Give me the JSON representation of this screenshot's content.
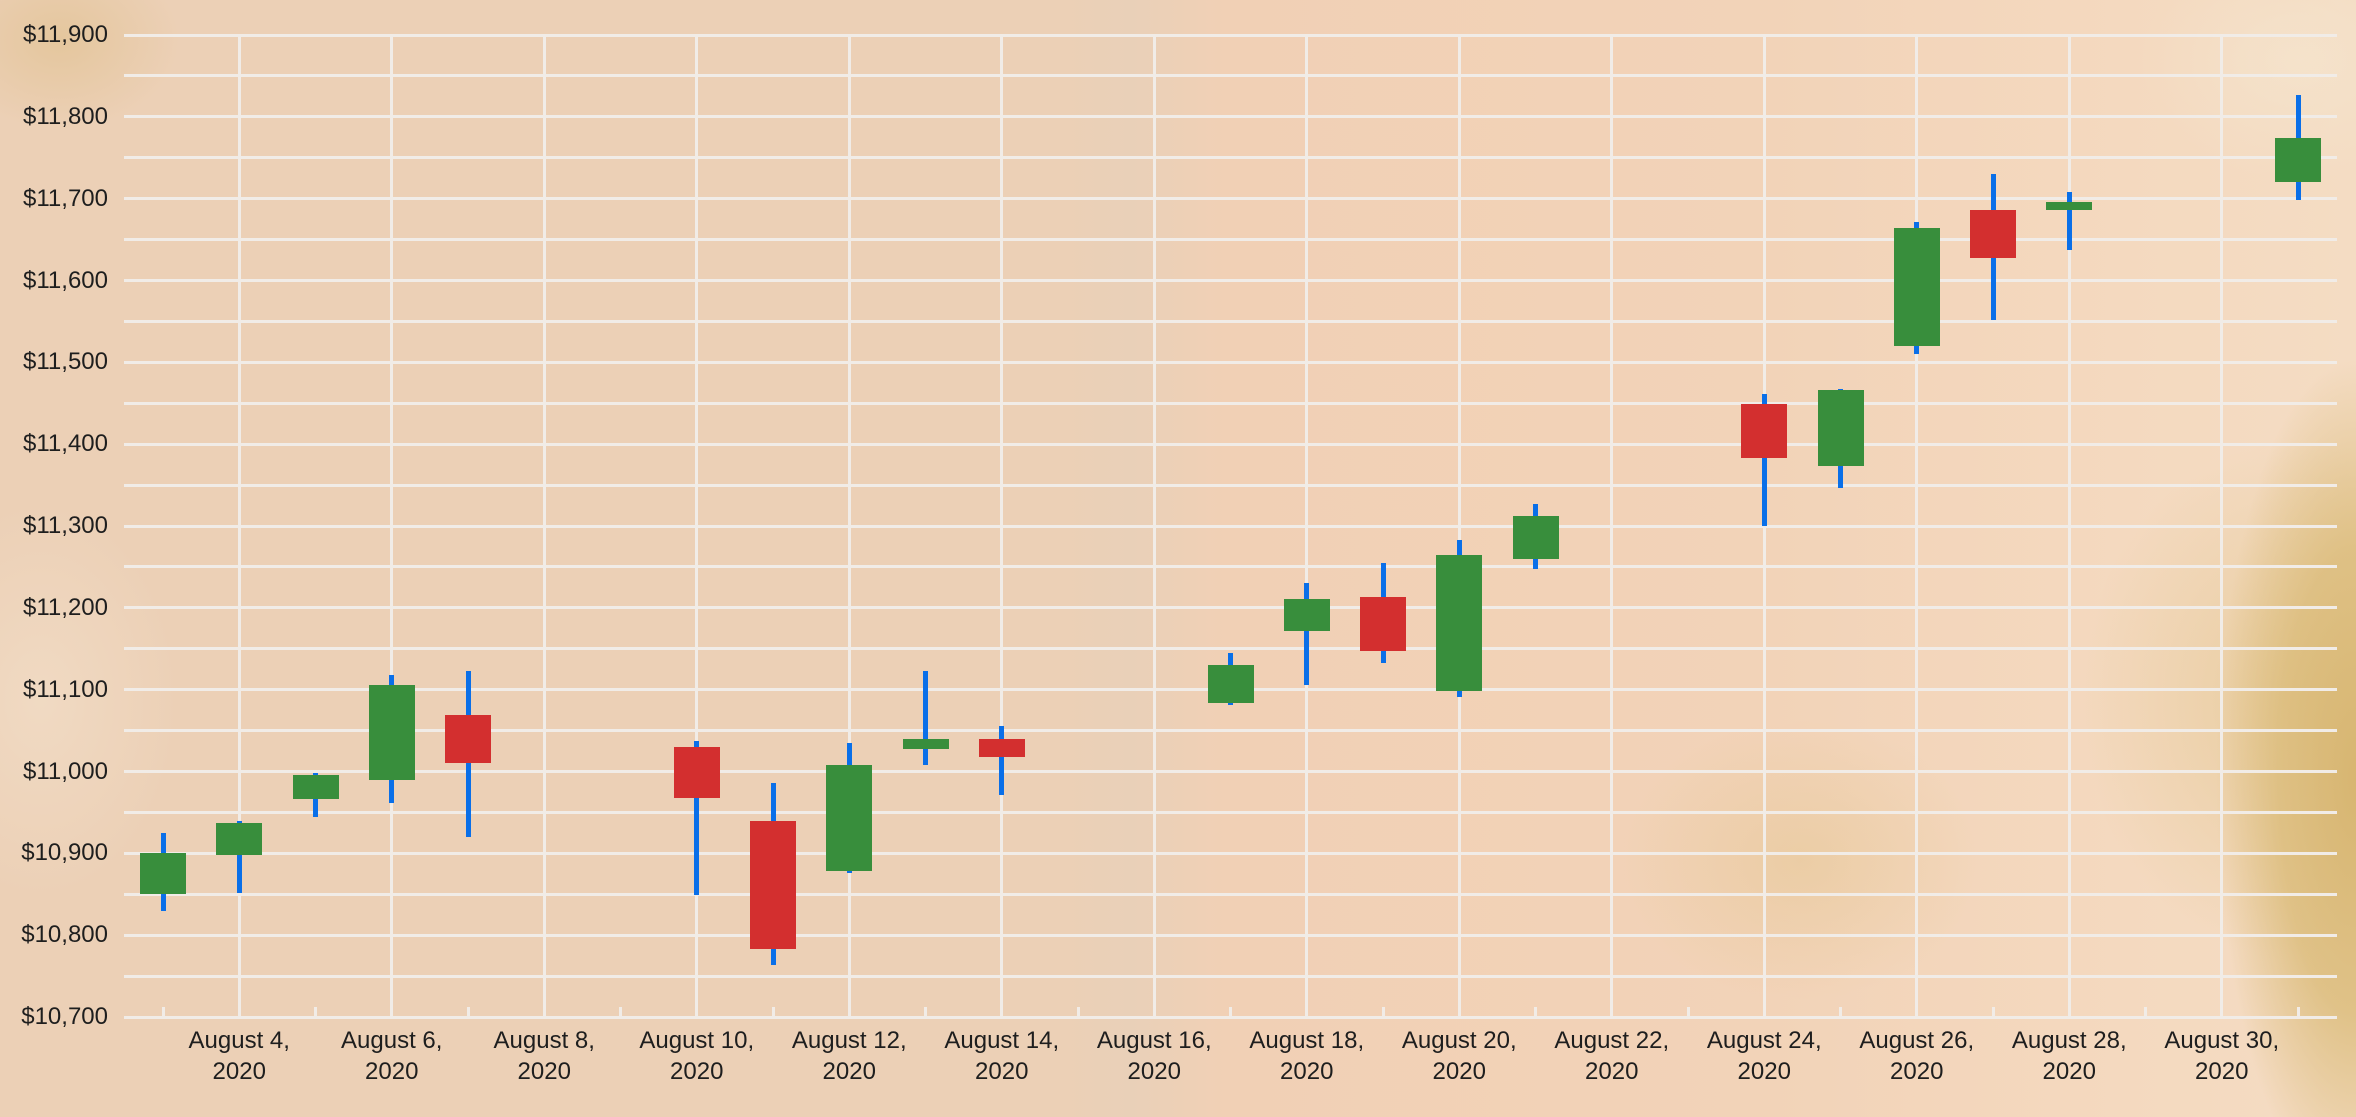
{
  "chart_data": {
    "type": "candlestick",
    "title": "",
    "xlabel": "",
    "ylabel": "",
    "ylim": [
      10700,
      11900
    ],
    "y_ticks": [
      "$10,700",
      "$10,800",
      "$10,900",
      "$11,000",
      "$11,100",
      "$11,200",
      "$11,300",
      "$11,400",
      "$11,500",
      "$11,600",
      "$11,700",
      "$11,800",
      "$11,900"
    ],
    "x_ticks": [
      {
        "line1": "August 4,",
        "line2": "2020",
        "day": 4
      },
      {
        "line1": "August 6,",
        "line2": "2020",
        "day": 6
      },
      {
        "line1": "August 8,",
        "line2": "2020",
        "day": 8
      },
      {
        "line1": "August 10,",
        "line2": "2020",
        "day": 10
      },
      {
        "line1": "August 12,",
        "line2": "2020",
        "day": 12
      },
      {
        "line1": "August 14,",
        "line2": "2020",
        "day": 14
      },
      {
        "line1": "August 16,",
        "line2": "2020",
        "day": 16
      },
      {
        "line1": "August 18,",
        "line2": "2020",
        "day": 18
      },
      {
        "line1": "August 20,",
        "line2": "2020",
        "day": 20
      },
      {
        "line1": "August 22,",
        "line2": "2020",
        "day": 22
      },
      {
        "line1": "August 24,",
        "line2": "2020",
        "day": 24
      },
      {
        "line1": "August 26,",
        "line2": "2020",
        "day": 26
      },
      {
        "line1": "August 28,",
        "line2": "2020",
        "day": 28
      },
      {
        "line1": "August 30,",
        "line2": "2020",
        "day": 30
      }
    ],
    "grid": true,
    "legend": null,
    "colors": {
      "increasing": "#388e3c",
      "decreasing": "#d32f2f",
      "wick": "#0a6fe8",
      "grid": "#f1ece7"
    },
    "series": [
      {
        "date": "2020-08-03",
        "open": 10850,
        "high": 10925,
        "low": 10830,
        "close": 10900
      },
      {
        "date": "2020-08-04",
        "open": 10898,
        "high": 10940,
        "low": 10852,
        "close": 10937
      },
      {
        "date": "2020-08-05",
        "open": 10966,
        "high": 10998,
        "low": 10944,
        "close": 10996
      },
      {
        "date": "2020-08-06",
        "open": 10989,
        "high": 11118,
        "low": 10962,
        "close": 11106
      },
      {
        "date": "2020-08-07",
        "open": 11069,
        "high": 11123,
        "low": 10920,
        "close": 11010
      },
      {
        "date": "2020-08-10",
        "open": 11030,
        "high": 11037,
        "low": 10849,
        "close": 10967
      },
      {
        "date": "2020-08-11",
        "open": 10940,
        "high": 10986,
        "low": 10764,
        "close": 10783
      },
      {
        "date": "2020-08-12",
        "open": 10878,
        "high": 11035,
        "low": 10876,
        "close": 11008
      },
      {
        "date": "2020-08-13",
        "open": 11028,
        "high": 11123,
        "low": 11008,
        "close": 11040
      },
      {
        "date": "2020-08-14",
        "open": 11040,
        "high": 11055,
        "low": 10971,
        "close": 11018
      },
      {
        "date": "2020-08-17",
        "open": 11084,
        "high": 11145,
        "low": 11081,
        "close": 11130
      },
      {
        "date": "2020-08-18",
        "open": 11172,
        "high": 11230,
        "low": 11106,
        "close": 11211
      },
      {
        "date": "2020-08-19",
        "open": 11213,
        "high": 11255,
        "low": 11133,
        "close": 11147
      },
      {
        "date": "2020-08-20",
        "open": 11098,
        "high": 11283,
        "low": 11091,
        "close": 11265
      },
      {
        "date": "2020-08-21",
        "open": 11260,
        "high": 11327,
        "low": 11248,
        "close": 11312
      },
      {
        "date": "2020-08-24",
        "open": 11449,
        "high": 11461,
        "low": 11300,
        "close": 11383
      },
      {
        "date": "2020-08-25",
        "open": 11373,
        "high": 11468,
        "low": 11346,
        "close": 11466
      },
      {
        "date": "2020-08-26",
        "open": 11520,
        "high": 11672,
        "low": 11510,
        "close": 11664
      },
      {
        "date": "2020-08-27",
        "open": 11686,
        "high": 11730,
        "low": 11552,
        "close": 11628
      },
      {
        "date": "2020-08-28",
        "open": 11686,
        "high": 11708,
        "low": 11637,
        "close": 11696
      },
      {
        "date": "2020-08-31",
        "open": 11720,
        "high": 11827,
        "low": 11698,
        "close": 11774
      }
    ]
  }
}
